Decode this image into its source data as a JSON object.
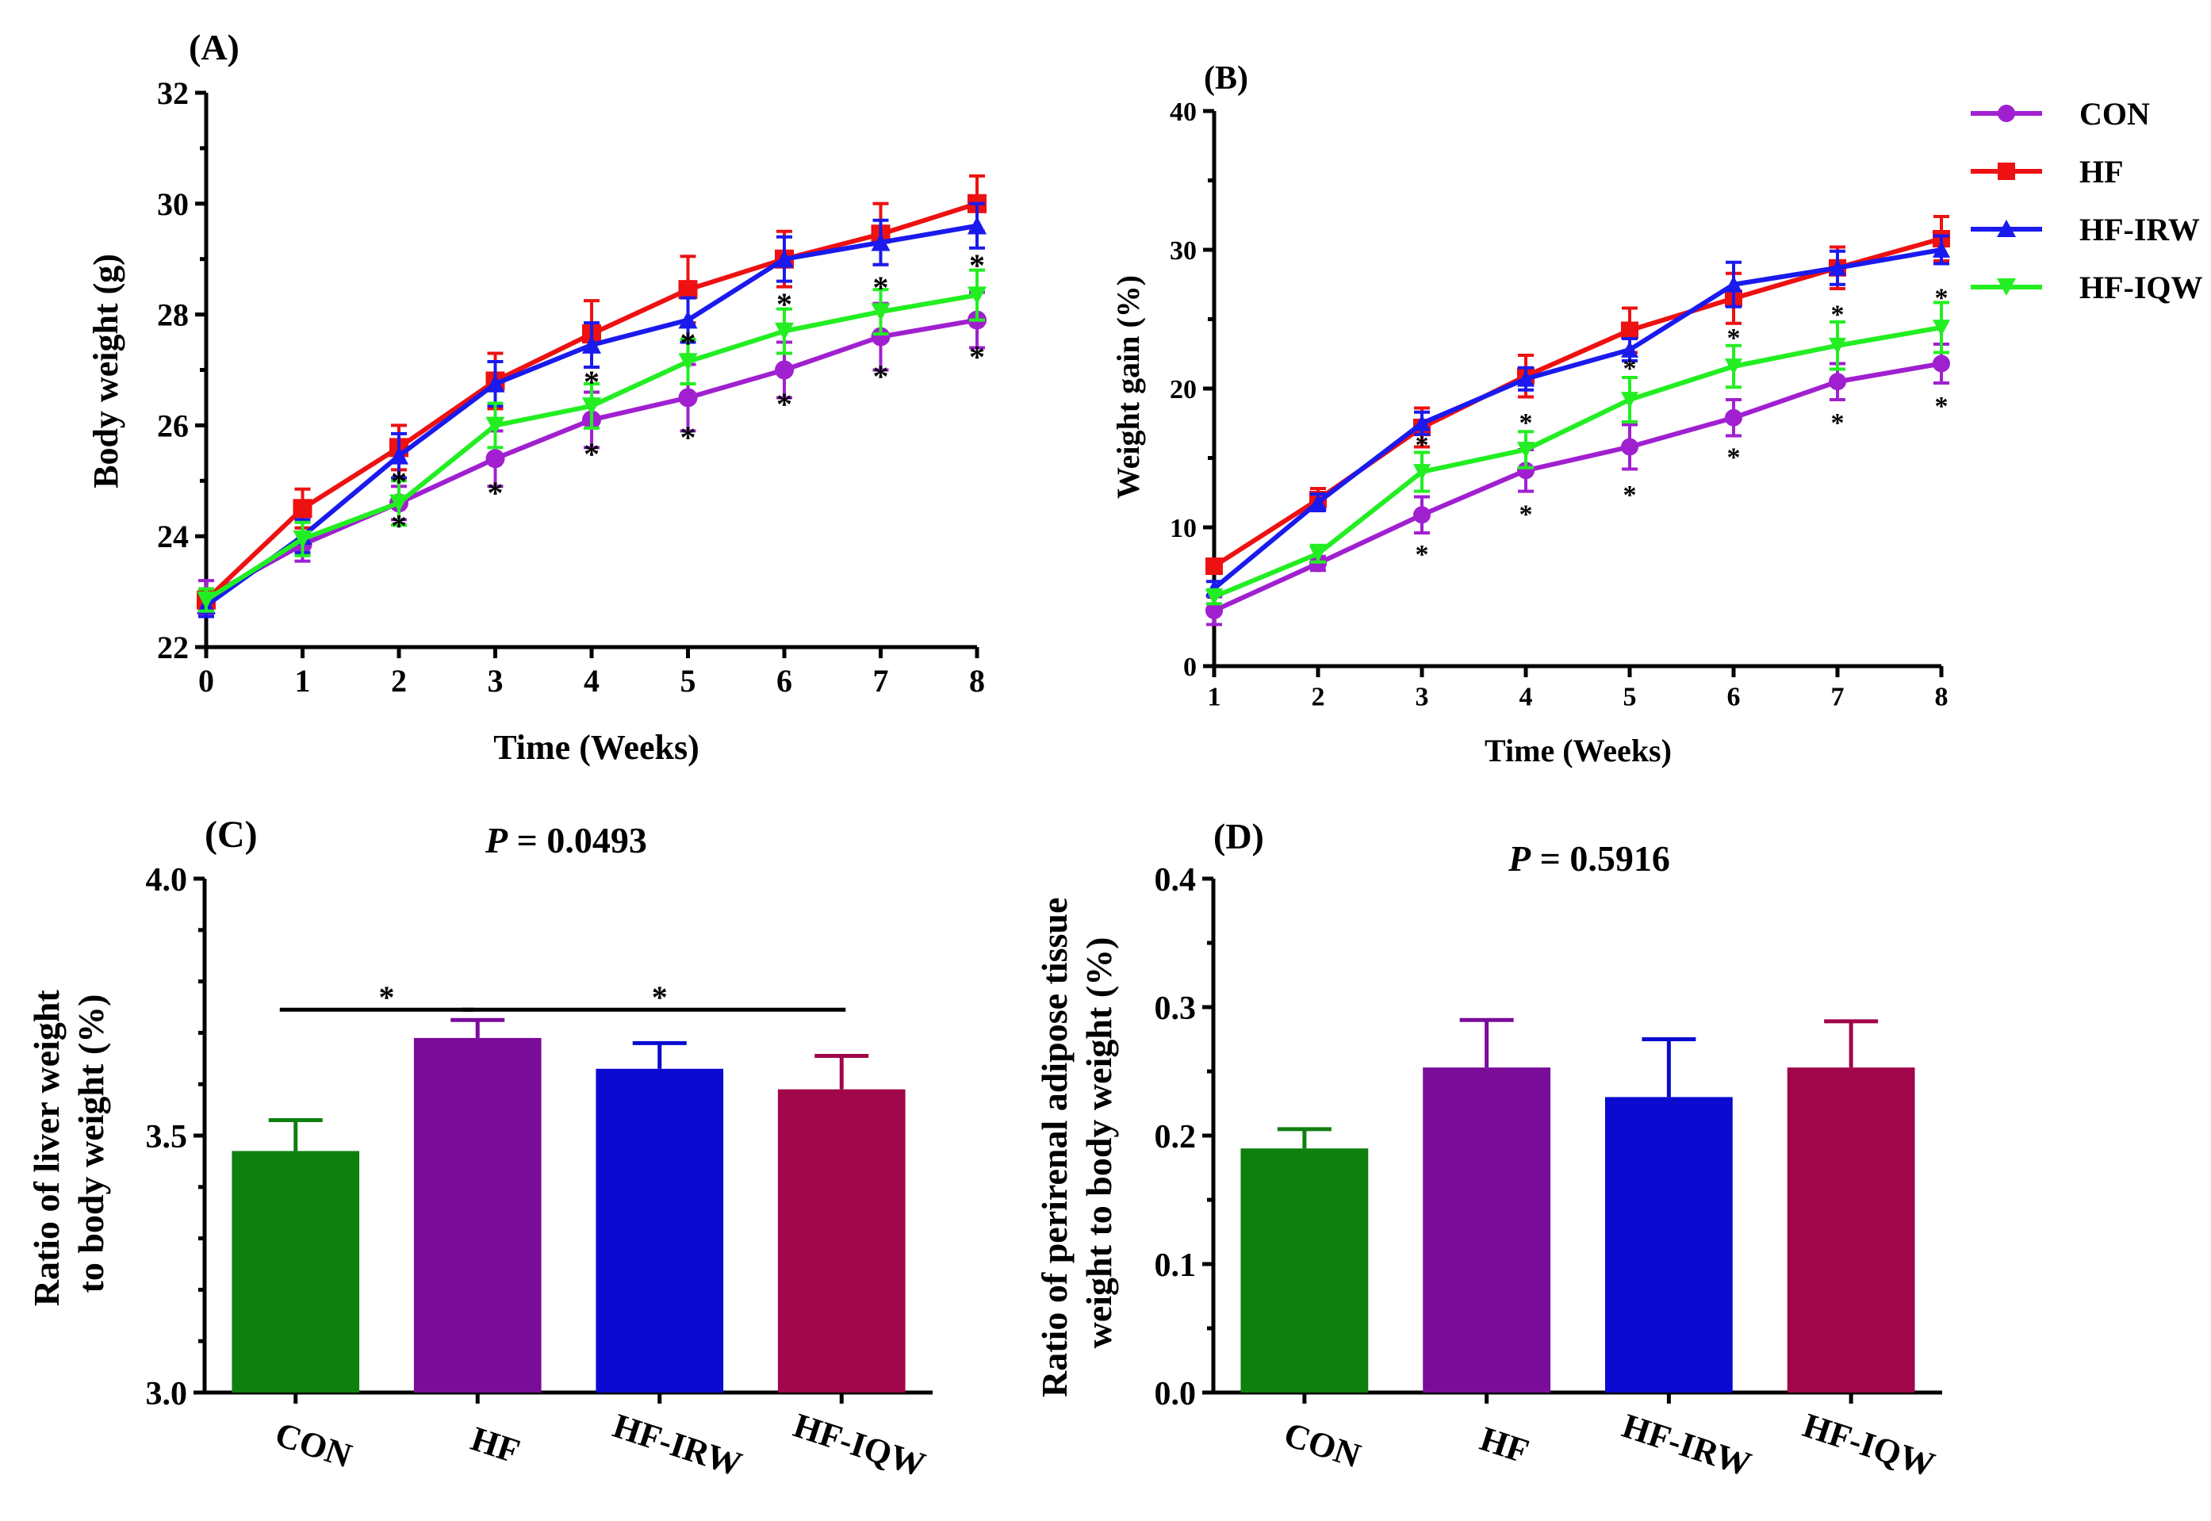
{
  "colors": {
    "CON": "#a020d0",
    "HF": "#ee1111",
    "HF-IRW": "#1a1aee",
    "HF-IQW": "#22ee22"
  },
  "legend": [
    {
      "name": "CON",
      "marker": "circle"
    },
    {
      "name": "HF",
      "marker": "square"
    },
    {
      "name": "HF-IRW",
      "marker": "triangle-up"
    },
    {
      "name": "HF-IQW",
      "marker": "triangle-down"
    }
  ],
  "chart_data": [
    {
      "panel": "(A)",
      "type": "line",
      "xlabel": "Time (Weeks)",
      "ylabel": "Body weight (g)",
      "x": [
        0,
        1,
        2,
        3,
        4,
        5,
        6,
        7,
        8
      ],
      "xticks": [
        "0",
        "1",
        "2",
        "3",
        "4",
        "5",
        "6",
        "7",
        "8"
      ],
      "yticks": [
        "22",
        "24",
        "26",
        "28",
        "30",
        "32"
      ],
      "ylim": [
        22,
        32
      ],
      "series": [
        {
          "name": "CON",
          "values": [
            22.9,
            23.85,
            24.6,
            25.4,
            26.1,
            26.5,
            27.0,
            27.6,
            27.9
          ],
          "err": [
            0.3,
            0.3,
            0.3,
            0.5,
            0.5,
            0.6,
            0.5,
            0.6,
            0.5
          ]
        },
        {
          "name": "HF",
          "values": [
            22.85,
            24.5,
            25.6,
            26.8,
            27.65,
            28.45,
            29.0,
            29.45,
            30.0
          ],
          "err": [
            0.2,
            0.35,
            0.4,
            0.5,
            0.6,
            0.6,
            0.5,
            0.55,
            0.5
          ]
        },
        {
          "name": "HF-IRW",
          "values": [
            22.75,
            24.0,
            25.45,
            26.75,
            27.45,
            27.9,
            29.0,
            29.3,
            29.6
          ],
          "err": [
            0.2,
            0.3,
            0.4,
            0.4,
            0.4,
            0.4,
            0.4,
            0.4,
            0.4
          ]
        },
        {
          "name": "HF-IQW",
          "values": [
            22.85,
            23.95,
            24.6,
            26.0,
            26.35,
            27.15,
            27.7,
            28.05,
            28.35
          ],
          "err": [
            0.2,
            0.3,
            0.4,
            0.4,
            0.4,
            0.4,
            0.4,
            0.4,
            0.45
          ]
        }
      ],
      "annotations": [
        {
          "text": "*",
          "x": 2,
          "y": 24.25
        },
        {
          "text": "*",
          "x": 2,
          "y": 25.05
        },
        {
          "text": "*",
          "x": 3,
          "y": 24.85
        },
        {
          "text": "*",
          "x": 4,
          "y": 25.55
        },
        {
          "text": "*",
          "x": 4,
          "y": 26.85
        },
        {
          "text": "*",
          "x": 5,
          "y": 25.85
        },
        {
          "text": "*",
          "x": 5,
          "y": 27.55
        },
        {
          "text": "*",
          "x": 6,
          "y": 26.45
        },
        {
          "text": "*",
          "x": 6,
          "y": 28.25
        },
        {
          "text": "*",
          "x": 7,
          "y": 26.95
        },
        {
          "text": "*",
          "x": 7,
          "y": 28.55
        },
        {
          "text": "*",
          "x": 8,
          "y": 27.3
        },
        {
          "text": "*",
          "x": 8,
          "y": 28.95
        }
      ]
    },
    {
      "panel": "(B)",
      "type": "line",
      "xlabel": "Time (Weeks)",
      "ylabel": "Weight gain (%)",
      "x": [
        1,
        2,
        3,
        4,
        5,
        6,
        7,
        8
      ],
      "xticks": [
        "1",
        "2",
        "3",
        "4",
        "5",
        "6",
        "7",
        "8"
      ],
      "yticks": [
        "0",
        "10",
        "20",
        "30",
        "40"
      ],
      "ylim": [
        0,
        40
      ],
      "series": [
        {
          "name": "CON",
          "values": [
            4.0,
            7.4,
            10.9,
            14.1,
            15.8,
            17.9,
            20.5,
            21.8
          ],
          "err": [
            1.0,
            0.5,
            1.3,
            1.5,
            1.6,
            1.3,
            1.3,
            1.4
          ]
        },
        {
          "name": "HF",
          "values": [
            7.2,
            12.0,
            17.2,
            20.9,
            24.2,
            26.5,
            28.7,
            30.8
          ],
          "err": [
            0.5,
            0.8,
            1.4,
            1.5,
            1.6,
            1.8,
            1.5,
            1.6
          ]
        },
        {
          "name": "HF-IRW",
          "values": [
            5.6,
            11.8,
            17.5,
            20.7,
            22.8,
            27.5,
            28.7,
            30.0
          ],
          "err": [
            0.5,
            0.6,
            0.8,
            0.8,
            0.8,
            1.6,
            1.2,
            1.0
          ]
        },
        {
          "name": "HF-IQW",
          "values": [
            5.0,
            8.1,
            14.0,
            15.6,
            19.2,
            21.6,
            23.1,
            24.4
          ],
          "err": [
            0.5,
            0.6,
            1.4,
            1.3,
            1.6,
            1.5,
            1.7,
            1.8
          ]
        }
      ],
      "annotations": [
        {
          "text": "*",
          "x": 3,
          "y": 8.3
        },
        {
          "text": "*",
          "x": 3,
          "y": 16.2
        },
        {
          "text": "*",
          "x": 4,
          "y": 11.2
        },
        {
          "text": "*",
          "x": 4,
          "y": 17.8
        },
        {
          "text": "*",
          "x": 5,
          "y": 12.6
        },
        {
          "text": "*",
          "x": 5,
          "y": 21.7
        },
        {
          "text": "*",
          "x": 6,
          "y": 15.3
        },
        {
          "text": "*",
          "x": 6,
          "y": 23.9
        },
        {
          "text": "*",
          "x": 7,
          "y": 17.8
        },
        {
          "text": "*",
          "x": 7,
          "y": 25.6
        },
        {
          "text": "*",
          "x": 8,
          "y": 19.0
        },
        {
          "text": "*",
          "x": 8,
          "y": 26.8
        }
      ]
    },
    {
      "panel": "(C)",
      "type": "bar",
      "title": "P = 0.0493",
      "title_italic": "P",
      "title_rest": " = 0.0493",
      "ylabel_lines": [
        "Ratio of liver  weight",
        "to body weight (%)"
      ],
      "categories": [
        "CON",
        "HF",
        "HF-IRW",
        "HF-IQW"
      ],
      "values": [
        3.47,
        3.69,
        3.63,
        3.59
      ],
      "err": [
        0.06,
        0.035,
        0.05,
        0.065
      ],
      "bar_colors": [
        "#0f7f0f",
        "#7a0c9a",
        "#0a0ad0",
        "#a0064a"
      ],
      "yticks": [
        "3.0",
        "3.5",
        "4.0"
      ],
      "ylim": [
        3.0,
        4.0
      ],
      "significance": [
        {
          "from": 0,
          "to": 1,
          "text": "*",
          "y": 3.745
        },
        {
          "from": 1,
          "to": 3,
          "text": "*",
          "y": 3.745
        }
      ]
    },
    {
      "panel": "(D)",
      "type": "bar",
      "title": "P = 0.5916",
      "title_italic": "P",
      "title_rest": " = 0.5916",
      "ylabel_lines": [
        "Ratio of perirenal adipose tissue",
        "weight to body weight (%)"
      ],
      "categories": [
        "CON",
        "HF",
        "HF-IRW",
        "HF-IQW"
      ],
      "values": [
        0.19,
        0.253,
        0.23,
        0.253
      ],
      "err": [
        0.015,
        0.037,
        0.045,
        0.036
      ],
      "bar_colors": [
        "#0f7f0f",
        "#7a0c9a",
        "#0a0ad0",
        "#a0064a"
      ],
      "yticks": [
        "0.0",
        "0.1",
        "0.2",
        "0.3",
        "0.4"
      ],
      "ylim": [
        0.0,
        0.4
      ],
      "significance": []
    }
  ]
}
